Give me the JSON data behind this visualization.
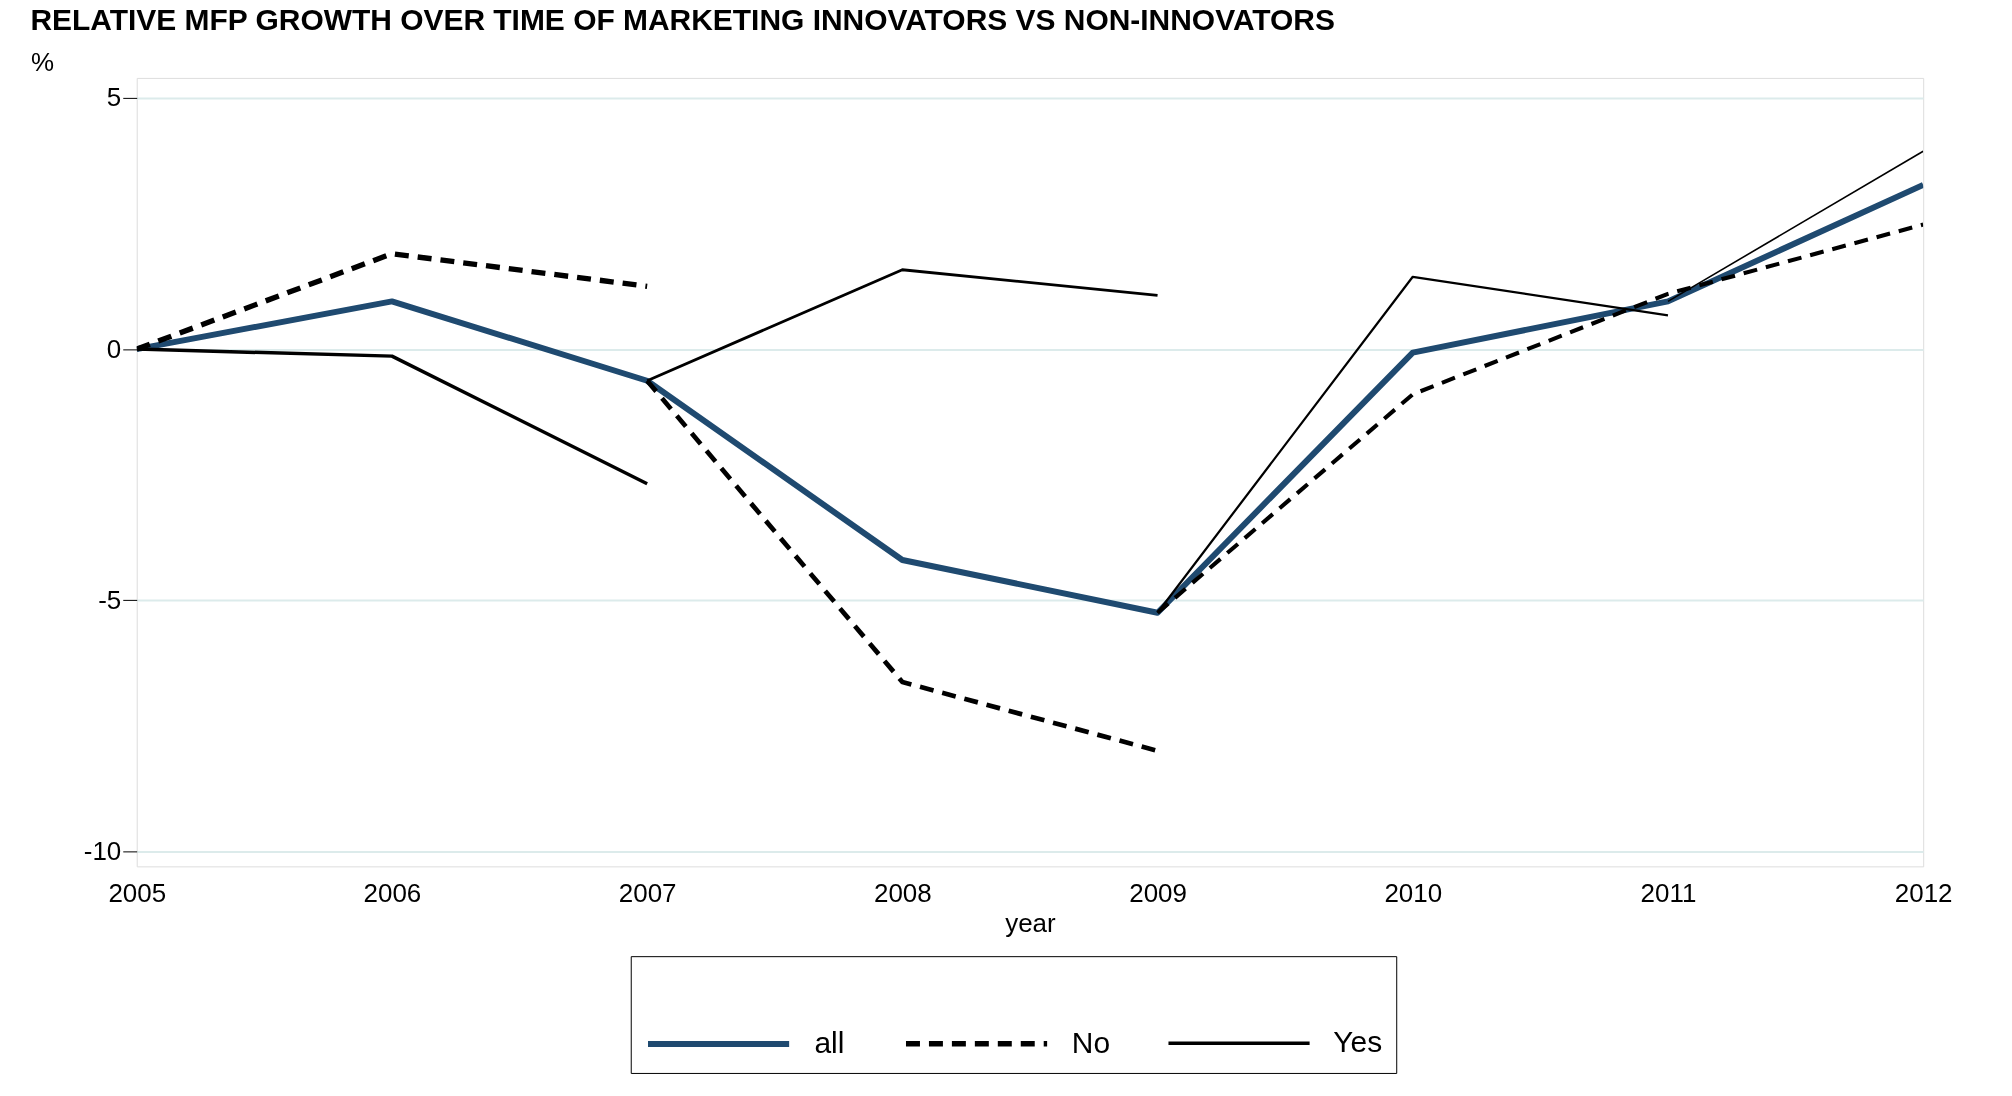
{
  "chart_data": {
    "type": "line",
    "title": "RELATIVE MFP GROWTH OVER TIME OF MARKETING INNOVATORS VS NON-INNOVATORS",
    "xlabel": "year",
    "ylabel": "%",
    "xlim": [
      2005,
      2012
    ],
    "xticks": [
      2005,
      2006,
      2007,
      2008,
      2009,
      2010,
      2011,
      2012
    ],
    "ylim": [
      -10.3,
      5.4
    ],
    "yticks": [
      -10,
      -5,
      0,
      5
    ],
    "grid": "y",
    "legend": "bottom",
    "series": [
      {
        "name": "all",
        "color": "#1f4a70",
        "line_style": "solid",
        "x": [
          2005,
          2006,
          2007,
          2008,
          2009,
          2010,
          2011,
          2012
        ],
        "values": [
          0,
          0.95,
          -0.63,
          -4.2,
          -5.25,
          -0.07,
          0.95,
          3.27
        ]
      },
      {
        "name": "No",
        "color": "#000000",
        "line_style": "dashed",
        "x": [
          2005,
          2006,
          2007
        ],
        "values": [
          0,
          1.9,
          1.25
        ]
      },
      {
        "color": "#000000",
        "line_style": "dashed",
        "x": [
          2007,
          2008,
          2009
        ],
        "values": [
          -0.63,
          -6.63,
          -8.0
        ]
      },
      {
        "color": "#000000",
        "line_style": "dashed",
        "x": [
          2009,
          2010,
          2011,
          2012
        ],
        "values": [
          -5.25,
          -0.9,
          1.1,
          2.48
        ]
      },
      {
        "name": "Yes",
        "color": "#000000",
        "line_style": "solid",
        "x": [
          2005,
          2006,
          2007
        ],
        "values": [
          0,
          -0.14,
          -2.68
        ]
      },
      {
        "color": "#000000",
        "line_style": "solid",
        "x": [
          2007,
          2008,
          2009
        ],
        "values": [
          -0.63,
          1.58,
          1.07
        ]
      },
      {
        "color": "#000000",
        "line_style": "solid",
        "x": [
          2009,
          2010,
          2011
        ],
        "values": [
          -5.25,
          1.44,
          0.67
        ]
      },
      {
        "color": "#000000",
        "line_style": "solid",
        "x": [
          2011,
          2012
        ],
        "values": [
          0.95,
          3.94
        ]
      }
    ]
  }
}
